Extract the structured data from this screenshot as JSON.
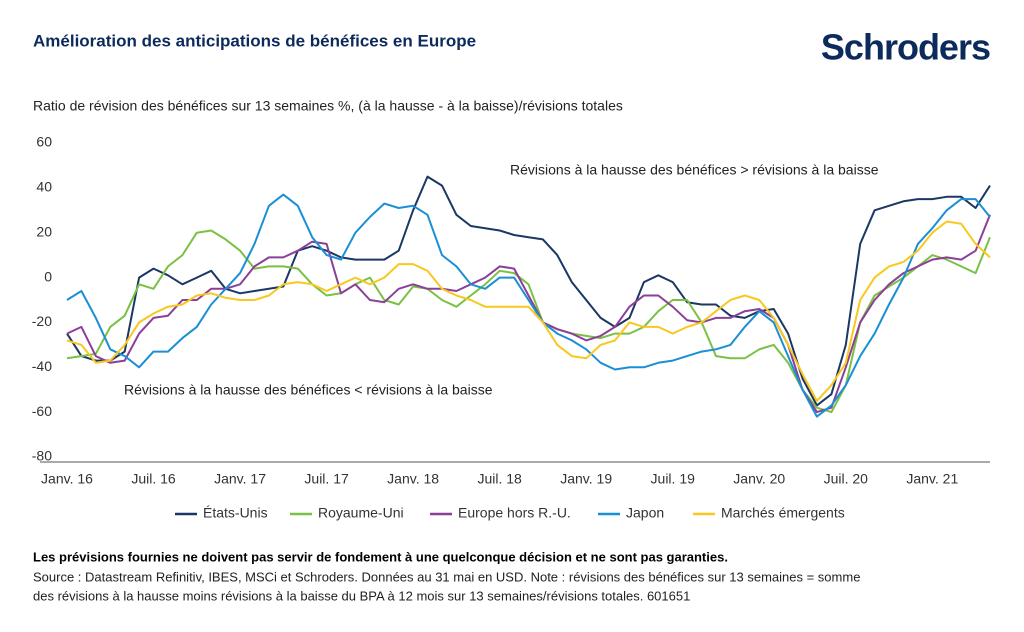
{
  "chart_data": {
    "type": "line",
    "title": "Amélioration des anticipations de bénéfices en Europe",
    "logo": "Schroders",
    "subtitle": "Ratio de révision des bénéfices sur 13 semaines %, (à la hausse - à la baisse)/révisions totales",
    "annotations": [
      "Révisions à la hausse des bénéfices > révisions à la baisse",
      "Révisions à la hausse des bénéfices < révisions à la baisse"
    ],
    "categories": [
      "Janv. 16",
      null,
      null,
      null,
      null,
      null,
      "Juil. 16",
      null,
      null,
      null,
      null,
      null,
      "Janv. 17",
      null,
      null,
      null,
      null,
      null,
      "Juil. 17",
      null,
      null,
      null,
      null,
      null,
      "Janv. 18",
      null,
      null,
      null,
      null,
      null,
      "Juil. 18",
      null,
      null,
      null,
      null,
      null,
      "Janv. 19",
      null,
      null,
      null,
      null,
      null,
      "Juil. 19",
      null,
      null,
      null,
      null,
      null,
      "Janv. 20",
      null,
      null,
      null,
      null,
      null,
      "Juil. 20",
      null,
      null,
      null,
      null,
      null,
      "Janv. 21",
      null,
      null,
      null,
      null
    ],
    "ylim": [
      -80,
      60
    ],
    "yticks": [
      -80,
      -60,
      -40,
      -20,
      0,
      20,
      40,
      60
    ],
    "grid": false,
    "legend": "bottom",
    "series": [
      {
        "name": "États-Unis",
        "color": "#1b3764",
        "values": [
          -25,
          -35,
          -37,
          -37,
          -33,
          0,
          4,
          1,
          -3,
          0,
          3,
          -5,
          -7,
          -6,
          -5,
          -4,
          12,
          14,
          12,
          9,
          8,
          8,
          8,
          12,
          30,
          45,
          41,
          28,
          23,
          22,
          21,
          19,
          18,
          17,
          10,
          -2,
          -10,
          -18,
          -22,
          -18,
          -2,
          1,
          -2,
          -11,
          -12,
          -12,
          -17,
          -18,
          -15,
          -14,
          -25,
          -45,
          -57,
          -52,
          -30,
          15,
          30,
          32,
          34,
          35,
          35,
          36,
          36,
          31,
          41
        ]
      },
      {
        "name": "Royaume-Uni",
        "color": "#7ac143",
        "values": [
          -36,
          -35,
          -34,
          -22,
          -17,
          -3,
          -5,
          5,
          10,
          20,
          21,
          17,
          12,
          4,
          5,
          5,
          4,
          -3,
          -8,
          -7,
          -3,
          0,
          -10,
          -12,
          -4,
          -5,
          -10,
          -13,
          -8,
          -3,
          3,
          2,
          -3,
          -20,
          -23,
          -25,
          -26,
          -27,
          -25,
          -25,
          -22,
          -15,
          -10,
          -10,
          -20,
          -35,
          -36,
          -36,
          -32,
          -30,
          -38,
          -50,
          -58,
          -60,
          -48,
          -20,
          -8,
          -4,
          0,
          5,
          10,
          8,
          5,
          2,
          18
        ]
      },
      {
        "name": "Europe hors R.-U.",
        "color": "#8b3f98",
        "values": [
          -25,
          -22,
          -35,
          -38,
          -37,
          -25,
          -18,
          -17,
          -10,
          -10,
          -5,
          -5,
          -3,
          5,
          9,
          9,
          12,
          16,
          15,
          -7,
          -3,
          -10,
          -11,
          -5,
          -3,
          -5,
          -5,
          -6,
          -3,
          0,
          5,
          4,
          -8,
          -20,
          -23,
          -25,
          -28,
          -26,
          -22,
          -13,
          -8,
          -8,
          -13,
          -19,
          -20,
          -18,
          -18,
          -15,
          -14,
          -18,
          -30,
          -50,
          -60,
          -58,
          -40,
          -20,
          -10,
          -3,
          2,
          5,
          8,
          9,
          8,
          12,
          28
        ]
      },
      {
        "name": "Japon",
        "color": "#1a8fd6",
        "values": [
          -10,
          -6,
          -18,
          -32,
          -35,
          -40,
          -33,
          -33,
          -27,
          -22,
          -12,
          -5,
          2,
          15,
          32,
          37,
          32,
          18,
          10,
          8,
          20,
          27,
          33,
          31,
          32,
          28,
          10,
          5,
          -3,
          -5,
          0,
          0,
          -10,
          -20,
          -25,
          -28,
          -32,
          -38,
          -41,
          -40,
          -40,
          -38,
          -37,
          -35,
          -33,
          -32,
          -30,
          -22,
          -15,
          -20,
          -35,
          -50,
          -62,
          -57,
          -48,
          -35,
          -25,
          -12,
          0,
          15,
          22,
          30,
          35,
          35,
          27
        ]
      },
      {
        "name": "Marchés émergents",
        "color": "#f8c81e",
        "values": [
          -28,
          -30,
          -38,
          -37,
          -30,
          -20,
          -16,
          -13,
          -12,
          -8,
          -7,
          -9,
          -10,
          -10,
          -8,
          -3,
          -2,
          -3,
          -6,
          -3,
          0,
          -3,
          0,
          6,
          6,
          3,
          -5,
          -8,
          -10,
          -13,
          -13,
          -13,
          -13,
          -20,
          -30,
          -35,
          -36,
          -30,
          -28,
          -20,
          -22,
          -22,
          -25,
          -22,
          -20,
          -15,
          -10,
          -8,
          -10,
          -18,
          -30,
          -43,
          -55,
          -48,
          -38,
          -10,
          0,
          5,
          7,
          12,
          20,
          25,
          24,
          15,
          9
        ]
      }
    ]
  },
  "footer": {
    "disclaimer": "Les prévisions fournies ne doivent pas servir de fondement à une quelconque décision et ne sont pas garanties.",
    "source": [
      "Source : Datastream Refinitiv, IBES, MSCi et Schroders. Données au 31 mai en USD. Note : révisions des bénéfices sur 13 semaines = somme",
      "des révisions à la hausse moins révisions à la baisse du BPA à 12 mois sur 13 semaines/révisions totales. 601651"
    ]
  }
}
